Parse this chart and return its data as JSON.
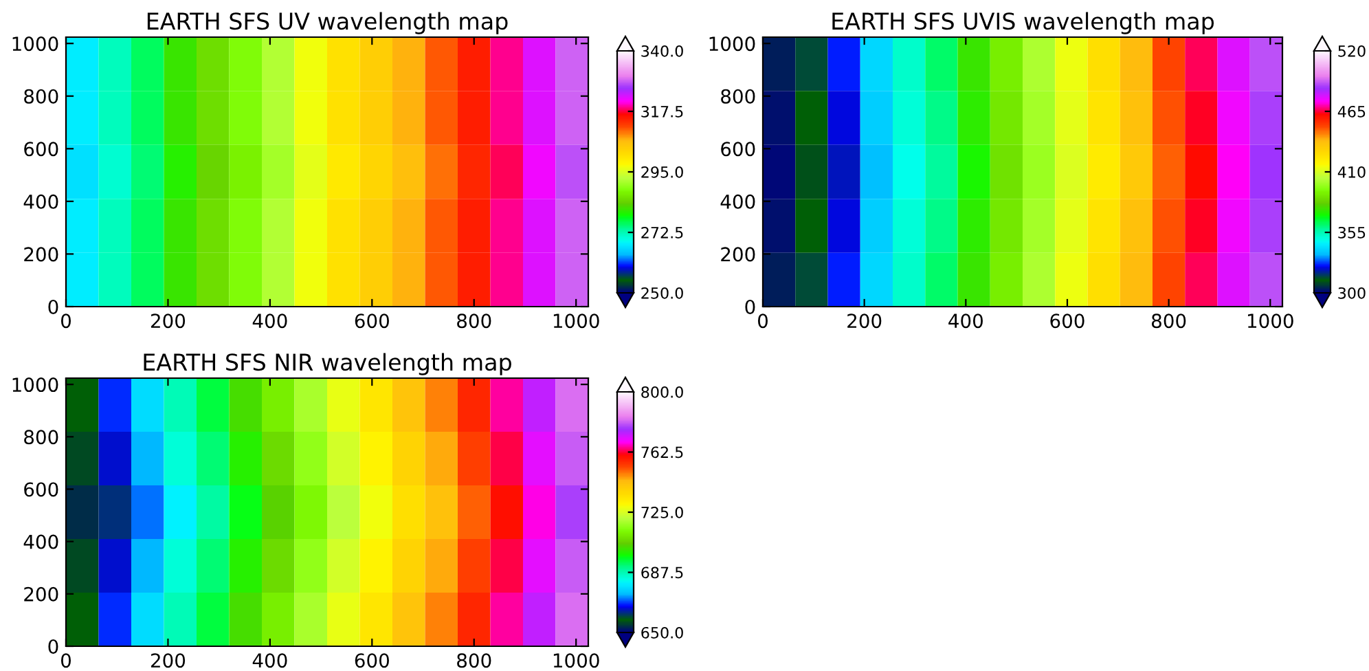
{
  "chart_data": [
    {
      "type": "heatmap",
      "title": "EARTH SFS UV wavelength map",
      "x": [
        32,
        96,
        160,
        224,
        288,
        352,
        416,
        480,
        544,
        608,
        672,
        736,
        800,
        864,
        928,
        992
      ],
      "y": [
        922,
        717,
        512,
        307,
        102
      ],
      "cells": [
        [
          268,
          272,
          276,
          281,
          285,
          288,
          292,
          297,
          301,
          304,
          307,
          311,
          315,
          319,
          323,
          329
        ],
        [
          268,
          272,
          276,
          281,
          285,
          288,
          292,
          297,
          301,
          304,
          307,
          311,
          315,
          319,
          323,
          329
        ],
        [
          267,
          271,
          275,
          280,
          284,
          287,
          291,
          296,
          300,
          303,
          306,
          310,
          314,
          318,
          322,
          328
        ],
        [
          268,
          272,
          276,
          281,
          285,
          288,
          292,
          297,
          301,
          304,
          307,
          311,
          315,
          319,
          323,
          329
        ],
        [
          268,
          272,
          276,
          281,
          285,
          288,
          292,
          297,
          301,
          304,
          307,
          311,
          315,
          319,
          323,
          329
        ]
      ],
      "xlim": [
        0,
        1024
      ],
      "ylim": [
        0,
        1024
      ],
      "xticks": [
        0,
        200,
        400,
        600,
        800,
        1000
      ],
      "yticks": [
        0,
        200,
        400,
        600,
        800,
        1000
      ],
      "clim": [
        250,
        340
      ],
      "cticks": [
        {
          "value": 250,
          "label": "250.0"
        },
        {
          "value": 272.5,
          "label": "272.5"
        },
        {
          "value": 295,
          "label": "295.0"
        },
        {
          "value": 317.5,
          "label": "317.5"
        },
        {
          "value": 340,
          "label": "340.0"
        }
      ]
    },
    {
      "type": "heatmap",
      "title": "EARTH SFS UVIS wavelength map",
      "x": [
        32,
        96,
        160,
        224,
        288,
        352,
        416,
        480,
        544,
        608,
        672,
        736,
        800,
        864,
        928,
        992
      ],
      "y": [
        922,
        717,
        512,
        307,
        102
      ],
      "cells": [
        [
          304,
          314,
          325,
          340,
          352,
          362,
          376,
          390,
          402,
          414,
          426,
          438,
          452,
          466,
          478,
          490
        ],
        [
          302,
          312,
          323,
          338,
          350,
          360,
          374,
          388,
          400,
          412,
          424,
          436,
          450,
          464,
          476,
          488
        ],
        [
          301,
          310,
          321,
          336,
          348,
          358,
          372,
          386,
          398,
          410,
          422,
          434,
          448,
          462,
          474,
          486
        ],
        [
          302,
          312,
          323,
          338,
          350,
          360,
          374,
          388,
          400,
          412,
          424,
          436,
          450,
          464,
          476,
          488
        ],
        [
          304,
          314,
          325,
          340,
          352,
          362,
          376,
          390,
          402,
          414,
          426,
          438,
          452,
          466,
          478,
          490
        ]
      ],
      "xlim": [
        0,
        1024
      ],
      "ylim": [
        0,
        1024
      ],
      "xticks": [
        0,
        200,
        400,
        600,
        800,
        1000
      ],
      "yticks": [
        0,
        200,
        400,
        600,
        800,
        1000
      ],
      "clim": [
        300,
        520
      ],
      "cticks": [
        300,
        355,
        410,
        465,
        520
      ]
    },
    {
      "type": "heatmap",
      "title": "EARTH SFS NIR wavelength map",
      "x": [
        32,
        96,
        160,
        224,
        288,
        352,
        416,
        480,
        544,
        608,
        672,
        736,
        800,
        864,
        928,
        992
      ],
      "y": [
        922,
        717,
        512,
        307,
        102
      ],
      "cells": [
        [
          658,
          668,
          678,
          687,
          695,
          703,
          711,
          719,
          727,
          734,
          742,
          749,
          757,
          766,
          774,
          783
        ],
        [
          656,
          665,
          674,
          684,
          692,
          700,
          708,
          716,
          724,
          731,
          739,
          746,
          754,
          763,
          771,
          781
        ],
        [
          654,
          662,
          671,
          681,
          689,
          697,
          705,
          713,
          721,
          728,
          736,
          743,
          751,
          760,
          768,
          778
        ],
        [
          656,
          665,
          674,
          684,
          692,
          700,
          708,
          716,
          724,
          731,
          739,
          746,
          754,
          763,
          771,
          781
        ],
        [
          658,
          668,
          678,
          687,
          695,
          703,
          711,
          719,
          727,
          734,
          742,
          749,
          757,
          766,
          774,
          783
        ]
      ],
      "xlim": [
        0,
        1024
      ],
      "ylim": [
        0,
        1024
      ],
      "xticks": [
        0,
        200,
        400,
        600,
        800,
        1000
      ],
      "yticks": [
        0,
        200,
        400,
        600,
        800,
        1000
      ],
      "clim": [
        650,
        800
      ],
      "cticks": [
        {
          "value": 650,
          "label": "650.0"
        },
        {
          "value": 687.5,
          "label": "687.5"
        },
        {
          "value": 725,
          "label": "725.0"
        },
        {
          "value": 762.5,
          "label": "762.5"
        },
        {
          "value": 800,
          "label": "800.0"
        }
      ]
    }
  ]
}
